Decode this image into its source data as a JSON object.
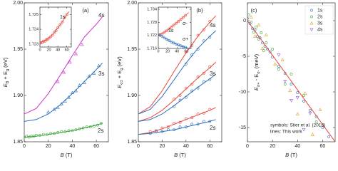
{
  "chart_data": [
    {
      "type": "line",
      "panel_label": "(a)",
      "xlabel_parts": [
        {
          "t": "B"
        },
        {
          "t": " (T)"
        }
      ],
      "ylabel_parts": [
        {
          "t": "E"
        },
        {
          "t": "B",
          "sub": true
        },
        {
          "t": " + E"
        },
        {
          "t": "g",
          "sub": true
        },
        {
          "t": " (eV)"
        }
      ],
      "xlim": [
        0,
        70
      ],
      "xticks": [
        0,
        20,
        40,
        60
      ],
      "ylim": [
        1.85,
        2.0
      ],
      "yticks": [
        1.85,
        {
          "value": 1.9,
          "label": "1.90"
        },
        1.95,
        {
          "value": 2.0,
          "label": "2.00"
        }
      ],
      "curve_labels": [
        "2s",
        "3s",
        "4s"
      ],
      "curve_label_colors": [
        "#3aa63a",
        "#2a6ebb",
        "#cc33cc"
      ],
      "series": [
        {
          "kind": "line",
          "color": "#3aa63a",
          "x": [
            0,
            10,
            20,
            30,
            40,
            50,
            60,
            65
          ],
          "values": [
            1.855,
            1.856,
            1.858,
            1.86,
            1.862,
            1.865,
            1.868,
            1.87
          ]
        },
        {
          "kind": "line",
          "color": "#2a6ebb",
          "x": [
            0,
            10,
            20,
            30,
            40,
            50,
            60,
            65
          ],
          "values": [
            1.872,
            1.874,
            1.88,
            1.89,
            1.902,
            1.915,
            1.928,
            1.935
          ]
        },
        {
          "kind": "line",
          "color": "#cc33cc",
          "x": [
            0,
            10,
            20,
            30,
            40,
            50,
            60,
            65
          ],
          "values": [
            1.88,
            1.886,
            1.902,
            1.922,
            1.943,
            1.963,
            1.977,
            1.985
          ]
        },
        {
          "kind": "scatter",
          "marker": "circle",
          "color": "#3aa63a",
          "x": [
            0,
            2,
            4,
            6,
            8,
            10,
            13,
            16,
            19,
            22,
            25,
            28,
            31,
            34,
            37,
            40,
            43,
            46,
            49,
            52,
            55,
            58,
            61,
            64
          ],
          "values": [
            1.855,
            1.856,
            1.855,
            1.856,
            1.856,
            1.857,
            1.857,
            1.858,
            1.858,
            1.859,
            1.859,
            1.86,
            1.861,
            1.861,
            1.862,
            1.862,
            1.863,
            1.864,
            1.865,
            1.866,
            1.866,
            1.867,
            1.868,
            1.87
          ]
        },
        {
          "kind": "scatter",
          "marker": "triangle",
          "color": "#2a6ebb",
          "x": [
            20,
            25,
            28,
            31,
            34,
            37,
            40,
            43,
            46,
            50,
            54,
            58,
            62
          ],
          "values": [
            1.882,
            1.885,
            1.887,
            1.891,
            1.894,
            1.898,
            1.903,
            1.905,
            1.911,
            1.914,
            1.921,
            1.924,
            1.932
          ]
        },
        {
          "kind": "scatter",
          "marker": "triangle",
          "color": "#cc33cc",
          "x": [
            28,
            33,
            38,
            43,
            48
          ],
          "values": [
            1.915,
            1.925,
            1.936,
            1.945,
            1.955
          ]
        }
      ],
      "inset": {
        "type": "line",
        "curve_labels": [
          "1s"
        ],
        "curve_label_colors": [
          "#e8483b"
        ],
        "xlim": [
          0,
          70
        ],
        "xticks": [
          0,
          20,
          40,
          60
        ],
        "ylim": [
          1.7228,
          1.7255
        ],
        "yticks": [
          1.723,
          1.724,
          1.725
        ],
        "series": [
          {
            "kind": "line",
            "color": "#e8483b",
            "x": [
              0,
              10,
              20,
              30,
              40,
              50,
              60,
              65
            ],
            "values": [
              1.7231,
              1.7232,
              1.7234,
              1.7237,
              1.7241,
              1.7245,
              1.725,
              1.7252
            ]
          },
          {
            "kind": "scatter",
            "marker": "circle",
            "color": "#e8483b",
            "x": [
              2,
              5,
              8,
              11,
              14,
              17,
              20,
              24,
              28,
              32,
              36,
              40,
              45,
              50,
              55,
              60
            ],
            "values": [
              1.7231,
              1.7231,
              1.7232,
              1.7232,
              1.7233,
              1.7233,
              1.7234,
              1.7235,
              1.7236,
              1.7238,
              1.7239,
              1.7241,
              1.7243,
              1.7245,
              1.7248,
              1.725
            ]
          }
        ]
      }
    },
    {
      "type": "line",
      "panel_label": "(b)",
      "xlabel_parts": [
        {
          "t": "B"
        },
        {
          "t": " (T)"
        }
      ],
      "ylabel_parts": [
        {
          "t": "E"
        },
        {
          "t": "σ±",
          "sub": true
        },
        {
          "t": " + E"
        },
        {
          "t": "g",
          "sub": true
        },
        {
          "t": " (eV)"
        }
      ],
      "xlim": [
        0,
        70
      ],
      "xticks": [
        0,
        20,
        40,
        60
      ],
      "ylim": [
        1.85,
        2.0
      ],
      "yticks": [
        1.85,
        {
          "value": 1.9,
          "label": "1.90"
        },
        1.95,
        {
          "value": 2.0,
          "label": "2.00"
        }
      ],
      "curve_labels": [
        "2s",
        "3s",
        "4s"
      ],
      "series": [
        {
          "kind": "line",
          "color": "#e8483b",
          "x": [
            0,
            10,
            20,
            30,
            40,
            50,
            60,
            65
          ],
          "values": [
            1.858,
            1.86,
            1.864,
            1.869,
            1.874,
            1.879,
            1.884,
            1.887
          ]
        },
        {
          "kind": "line",
          "color": "#2a6ebb",
          "x": [
            0,
            10,
            20,
            30,
            40,
            50,
            60,
            65
          ],
          "values": [
            1.858,
            1.859,
            1.861,
            1.863,
            1.866,
            1.869,
            1.872,
            1.874
          ]
        },
        {
          "kind": "line",
          "color": "#e8483b",
          "x": [
            0,
            10,
            20,
            30,
            40,
            50,
            60,
            65
          ],
          "values": [
            1.872,
            1.876,
            1.884,
            1.895,
            1.907,
            1.919,
            1.93,
            1.936
          ]
        },
        {
          "kind": "line",
          "color": "#2a6ebb",
          "x": [
            0,
            10,
            20,
            30,
            40,
            50,
            60,
            65
          ],
          "values": [
            1.872,
            1.874,
            1.88,
            1.889,
            1.899,
            1.909,
            1.918,
            1.923
          ]
        },
        {
          "kind": "line",
          "color": "#e8483b",
          "x": [
            0,
            10,
            20,
            30,
            40,
            50,
            60,
            65
          ],
          "values": [
            1.88,
            1.888,
            1.905,
            1.926,
            1.946,
            1.964,
            1.979,
            1.986
          ]
        },
        {
          "kind": "line",
          "color": "#2a6ebb",
          "x": [
            0,
            10,
            20,
            30,
            40,
            50,
            60,
            65
          ],
          "values": [
            1.88,
            1.885,
            1.899,
            1.917,
            1.935,
            1.951,
            1.964,
            1.97
          ]
        },
        {
          "kind": "scatter",
          "marker": "circle",
          "color": "#e8483b",
          "x": [
            10,
            15,
            20,
            25,
            30,
            35,
            40,
            45,
            50,
            55,
            60,
            30,
            35,
            40,
            45,
            50,
            55,
            60,
            40,
            45,
            50,
            55,
            60
          ],
          "values": [
            1.861,
            1.862,
            1.865,
            1.866,
            1.87,
            1.871,
            1.875,
            1.876,
            1.88,
            1.881,
            1.885,
            1.896,
            1.9,
            1.908,
            1.912,
            1.92,
            1.924,
            1.931,
            1.947,
            1.954,
            1.965,
            1.971,
            1.98
          ]
        },
        {
          "kind": "scatter",
          "marker": "circle",
          "color": "#2a6ebb",
          "x": [
            10,
            15,
            20,
            25,
            30,
            35,
            40,
            45,
            50,
            55,
            60,
            30,
            35,
            40,
            45,
            50,
            55,
            60,
            40,
            45,
            50,
            55,
            60
          ],
          "values": [
            1.859,
            1.861,
            1.861,
            1.863,
            1.863,
            1.866,
            1.866,
            1.869,
            1.869,
            1.872,
            1.872,
            1.888,
            1.895,
            1.898,
            1.905,
            1.908,
            1.915,
            1.917,
            1.934,
            1.944,
            1.95,
            1.959,
            1.963
          ]
        }
      ],
      "inset": {
        "type": "line",
        "curve_labels": [
          "1s",
          "σ-",
          "σ+"
        ],
        "curve_label_colors": [
          "#222222",
          "#e8483b",
          "#2a6ebb"
        ],
        "xlim": [
          0,
          70
        ],
        "xticks": [
          0,
          20,
          40,
          60
        ],
        "ylim": [
          1.716,
          1.735
        ],
        "yticks": [
          1.716,
          1.722,
          1.728,
          1.734
        ],
        "series": [
          {
            "kind": "line",
            "color": "#e8483b",
            "x": [
              0,
              10,
              20,
              30,
              40,
              50,
              60,
              65
            ],
            "values": [
              1.7222,
              1.723,
              1.7245,
              1.7262,
              1.728,
              1.7298,
              1.7316,
              1.7325
            ]
          },
          {
            "kind": "line",
            "color": "#2a6ebb",
            "x": [
              0,
              10,
              20,
              30,
              40,
              50,
              60,
              65
            ],
            "values": [
              1.7222,
              1.7214,
              1.72,
              1.7188,
              1.7178,
              1.717,
              1.7164,
              1.7161
            ]
          },
          {
            "kind": "scatter",
            "marker": "circle",
            "color": "#e8483b",
            "x": [
              3,
              8,
              13,
              18,
              23,
              28,
              33,
              38,
              43,
              48,
              53,
              58
            ],
            "values": [
              1.7223,
              1.7227,
              1.7234,
              1.7241,
              1.725,
              1.7258,
              1.7267,
              1.7276,
              1.7284,
              1.7294,
              1.7302,
              1.7312
            ]
          },
          {
            "kind": "scatter",
            "marker": "circle",
            "color": "#2a6ebb",
            "x": [
              3,
              8,
              13,
              18,
              23,
              28,
              33,
              38,
              43,
              48,
              53,
              58
            ],
            "values": [
              1.7221,
              1.7216,
              1.7208,
              1.7202,
              1.7196,
              1.719,
              1.7185,
              1.718,
              1.7176,
              1.7172,
              1.7168,
              1.7165
            ]
          }
        ]
      }
    },
    {
      "type": "scatter",
      "panel_label": "(c)",
      "xlabel_parts": [
        {
          "t": "B"
        },
        {
          "t": " (T)"
        }
      ],
      "ylabel_parts": [
        {
          "t": "E"
        },
        {
          "t": "σ+",
          "sub": true
        },
        {
          "t": " - E"
        },
        {
          "t": "σ-",
          "sub": true
        },
        {
          "t": " (meV)"
        }
      ],
      "xlim": [
        0,
        70
      ],
      "xticks": [
        0,
        20,
        40,
        60
      ],
      "ylim": [
        -17,
        2.5
      ],
      "yticks": [
        0,
        -5,
        -10,
        -15
      ],
      "legend": "upper right",
      "annotations": [
        "symbols: Stier et al. (2018)",
        "lines: This work"
      ],
      "series": [
        {
          "name": "1s",
          "kind": "scatter",
          "marker": "circle",
          "color": "#2a6ebb",
          "x": [
            0,
            2,
            4,
            6,
            8,
            10,
            12,
            14,
            16,
            18,
            20,
            25,
            30,
            35,
            40,
            45,
            50,
            55,
            60,
            65
          ],
          "values": [
            0.3,
            -0.4,
            -1.1,
            -1.3,
            -2.2,
            -2.4,
            -3.1,
            -3.6,
            -4.0,
            -4.4,
            -5.1,
            -6.4,
            -7.4,
            -8.9,
            -10.1,
            -11.3,
            -12.6,
            -13.5,
            -15.0,
            -16.3
          ]
        },
        {
          "name": "2s",
          "kind": "scatter",
          "marker": "circle",
          "color": "#3aa63a",
          "x": [
            1,
            3,
            5,
            7,
            9,
            11,
            13,
            15,
            20,
            25,
            30,
            35,
            45,
            55
          ],
          "values": [
            0.8,
            -0.2,
            -1.6,
            -0.9,
            -2.6,
            -1.7,
            -4.2,
            -3.1,
            -4.0,
            -6.8,
            -8.9,
            -7.5,
            -10.5,
            -14.2
          ]
        },
        {
          "name": "3s",
          "kind": "scatter",
          "marker": "triangle",
          "color": "#e0a020",
          "x": [
            3,
            6,
            9,
            12,
            15,
            22,
            28,
            34,
            40,
            46,
            52,
            58
          ],
          "values": [
            0.5,
            -2.2,
            -0.6,
            -3.9,
            -2.0,
            -6.1,
            -5.5,
            -9.8,
            -13.1,
            -10.2,
            -16.0,
            -12.5
          ]
        },
        {
          "name": "4s",
          "kind": "scatter",
          "marker": "triangle-down",
          "color": "#9b59d0",
          "x": [
            25,
            30,
            35,
            40,
            45,
            50
          ],
          "values": [
            -4.8,
            -8.5,
            -11.2,
            -10.8,
            -15.3,
            -13.0
          ]
        },
        {
          "kind": "line",
          "color": "#e8483b",
          "x": [
            0,
            70
          ],
          "values": [
            0,
            -17
          ]
        }
      ]
    }
  ]
}
